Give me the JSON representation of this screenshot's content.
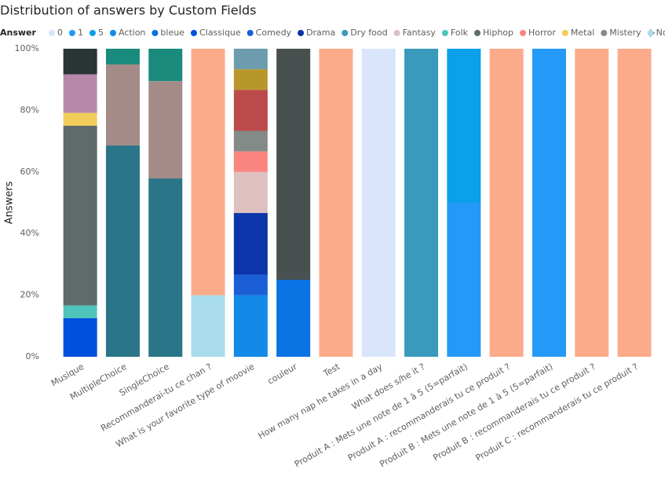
{
  "chart_data": {
    "type": "stacked_bar_100",
    "title": "Distribution of answers by Custom Fields",
    "legend_title": "Answer",
    "y_label": "Answers",
    "categories": [
      "Musique",
      "MultipleChoice",
      "SingleChoice",
      "Recommanderai-tu ce chan ?",
      "What is your favorite type of moovie",
      "couleur",
      "Test",
      "How many nap he takes in a day",
      "What does s/he it ?",
      "Produit A : Mets une note de 1 à 5 (5=parfait)",
      "Produit A : recommanderais tu ce produit ?",
      "Produit B : Mets une note de 1 à 5 (5=parfait)",
      "Produit B : recommanderais tu ce produit ?",
      "Produit C : recommanderais tu ce produit ?"
    ],
    "series": [
      {
        "name": "0",
        "color": "#d9e5fb",
        "values": [
          null,
          null,
          null,
          null,
          null,
          null,
          null,
          100,
          null,
          null,
          null,
          null,
          null,
          null
        ]
      },
      {
        "name": "1",
        "color": "#2599f7",
        "values": [
          null,
          null,
          null,
          null,
          null,
          null,
          null,
          null,
          null,
          50,
          null,
          100,
          null,
          null
        ]
      },
      {
        "name": "5",
        "color": "#0aa0ea",
        "values": [
          null,
          null,
          null,
          null,
          null,
          null,
          null,
          null,
          null,
          50,
          null,
          null,
          null,
          null
        ]
      },
      {
        "name": "Action",
        "color": "#118ae8",
        "values": [
          null,
          null,
          null,
          null,
          20,
          null,
          null,
          null,
          null,
          null,
          null,
          null,
          null,
          null
        ]
      },
      {
        "name": "bleue",
        "color": "#0a72e2",
        "values": [
          null,
          null,
          null,
          null,
          null,
          25,
          null,
          null,
          null,
          null,
          null,
          null,
          null,
          null
        ]
      },
      {
        "name": "Classique",
        "color": "#0050e0",
        "values": [
          12.5,
          null,
          null,
          null,
          null,
          null,
          null,
          null,
          null,
          null,
          null,
          null,
          null,
          null
        ]
      },
      {
        "name": "Comedy",
        "color": "#1a5fd6",
        "values": [
          null,
          null,
          null,
          null,
          6.67,
          null,
          null,
          null,
          null,
          null,
          null,
          null,
          null,
          null
        ]
      },
      {
        "name": "Drama",
        "color": "#0c35aa",
        "values": [
          null,
          null,
          null,
          null,
          20,
          null,
          null,
          null,
          null,
          null,
          null,
          null,
          null,
          null
        ]
      },
      {
        "name": "Dry food",
        "color": "#3a9abb",
        "values": [
          null,
          null,
          null,
          null,
          null,
          null,
          null,
          null,
          100,
          null,
          null,
          null,
          null,
          null
        ]
      },
      {
        "name": "Fantasy",
        "color": "#dfc0c0",
        "values": [
          null,
          null,
          null,
          null,
          13.33,
          null,
          null,
          null,
          null,
          null,
          null,
          null,
          null,
          null
        ]
      },
      {
        "name": "Folk",
        "color": "#4ec4bb",
        "values": [
          4.17,
          null,
          null,
          null,
          null,
          null,
          null,
          null,
          null,
          null,
          null,
          null,
          null,
          null
        ]
      },
      {
        "name": "Hiphop",
        "color": "#5f6b6b",
        "values": [
          58.33,
          null,
          null,
          null,
          null,
          null,
          null,
          null,
          null,
          null,
          null,
          null,
          null,
          null
        ]
      },
      {
        "name": "Horror",
        "color": "#fa8580",
        "values": [
          null,
          null,
          null,
          null,
          6.67,
          null,
          null,
          null,
          null,
          null,
          null,
          null,
          null,
          null
        ]
      },
      {
        "name": "Metal",
        "color": "#f2cd5a",
        "values": [
          4.17,
          null,
          null,
          null,
          null,
          null,
          null,
          null,
          null,
          null,
          null,
          null,
          null,
          null
        ]
      },
      {
        "name": "Mistery",
        "color": "#848a88",
        "values": [
          null,
          null,
          null,
          null,
          6.67,
          null,
          null,
          null,
          null,
          null,
          null,
          null,
          null,
          null
        ]
      },
      {
        "name": "Non",
        "color": "#a8dcec",
        "values": [
          null,
          null,
          null,
          20,
          null,
          null,
          null,
          null,
          null,
          null,
          null,
          null,
          null,
          null
        ]
      },
      {
        "color": "#b888ab",
        "values": [
          12.5,
          null,
          null,
          null,
          null,
          null,
          null,
          null,
          null,
          null,
          null,
          null,
          null,
          null
        ]
      },
      {
        "color": "#2a3535",
        "values": [
          8.33,
          null,
          null,
          null,
          null,
          null,
          null,
          null,
          null,
          null,
          null,
          null,
          null,
          null
        ]
      },
      {
        "color": "#2a7588",
        "values": [
          null,
          68.6,
          57.9,
          null,
          null,
          null,
          null,
          null,
          null,
          null,
          null,
          null,
          null,
          null
        ]
      },
      {
        "color": "#a58b88",
        "values": [
          null,
          26.3,
          31.6,
          null,
          null,
          null,
          null,
          null,
          null,
          null,
          null,
          null,
          null,
          null
        ]
      },
      {
        "color": "#1a8a7d",
        "values": [
          null,
          5.1,
          10.5,
          null,
          null,
          null,
          null,
          null,
          null,
          null,
          null,
          null,
          null,
          null
        ]
      },
      {
        "color": "#bd4a4a",
        "values": [
          null,
          null,
          null,
          null,
          13.33,
          null,
          null,
          null,
          null,
          null,
          null,
          null,
          null,
          null
        ]
      },
      {
        "color": "#b8972a",
        "values": [
          null,
          null,
          null,
          null,
          6.67,
          null,
          null,
          null,
          null,
          null,
          null,
          null,
          null,
          null
        ]
      },
      {
        "color": "#6c9cad",
        "values": [
          null,
          null,
          null,
          null,
          6.67,
          null,
          null,
          null,
          null,
          null,
          null,
          null,
          null,
          null
        ]
      },
      {
        "color": "#485050",
        "values": [
          null,
          null,
          null,
          null,
          null,
          75,
          null,
          null,
          null,
          null,
          null,
          null,
          null,
          null
        ]
      },
      {
        "color": "#fcab8a",
        "values": [
          null,
          null,
          null,
          80,
          null,
          null,
          100,
          null,
          null,
          null,
          100,
          null,
          100,
          100
        ]
      }
    ],
    "ylim": [
      0,
      100
    ],
    "yticks": [
      {
        "value": 0,
        "label": "0%"
      },
      {
        "value": 20,
        "label": "20%"
      },
      {
        "value": 40,
        "label": "40%"
      },
      {
        "value": 60,
        "label": "60%"
      },
      {
        "value": 80,
        "label": "80%"
      },
      {
        "value": 100,
        "label": "100%"
      }
    ],
    "grid": false,
    "legend_position": "top-left"
  }
}
